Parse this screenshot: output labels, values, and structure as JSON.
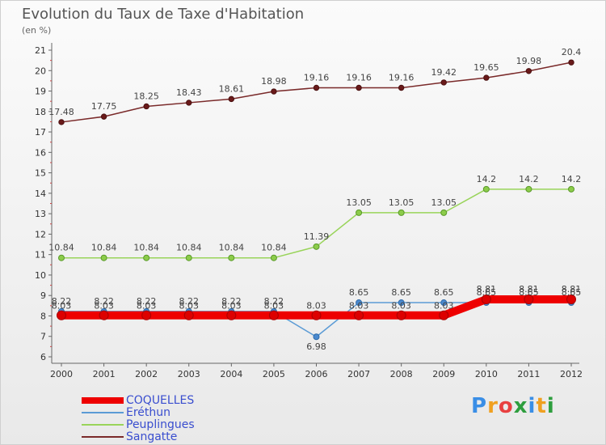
{
  "title": "Evolution du Taux de Taxe d'Habitation",
  "unit": "(en %)",
  "brand": {
    "letters": [
      "P",
      "r",
      "o",
      "x",
      "i",
      "t",
      "i"
    ],
    "colors": [
      "#3a8ee6",
      "#f0a020",
      "#e84040",
      "#2e9e3e",
      "#3a8ee6",
      "#f0a020",
      "#2e9e3e"
    ]
  },
  "chart_data": {
    "type": "line",
    "categories": [
      "2000",
      "2001",
      "2002",
      "2003",
      "2004",
      "2005",
      "2006",
      "2007",
      "2008",
      "2009",
      "2010",
      "2011",
      "2012"
    ],
    "ylim": [
      6,
      21
    ],
    "yticks": [
      "6",
      "7",
      "8",
      "9",
      "10",
      "11",
      "12",
      "13",
      "14",
      "15",
      "16",
      "17",
      "18",
      "19",
      "20",
      "21"
    ],
    "grid": false,
    "legend_position": "bottom-left",
    "series": [
      {
        "name": "COQUELLES",
        "color": "#ee0000",
        "values": [
          8.03,
          8.03,
          8.03,
          8.03,
          8.03,
          8.03,
          8.03,
          8.03,
          8.03,
          8.03,
          8.81,
          8.81,
          8.81
        ],
        "labels": [
          "8.03",
          "8.03",
          "8.03",
          "8.03",
          "8.03",
          "8.03",
          "8.03",
          "8.03",
          "8.03",
          "8.03",
          "8.81",
          "8.81",
          "8.81"
        ]
      },
      {
        "name": "Eréthun",
        "color": "#5b9bd5",
        "values": [
          8.22,
          8.22,
          8.22,
          8.22,
          8.22,
          8.22,
          6.98,
          8.65,
          8.65,
          8.65,
          8.65,
          8.65,
          8.65
        ],
        "labels": [
          "8.22",
          "8.22",
          "8.22",
          "8.22",
          "8.22",
          "8.22",
          "6.98",
          "8.65",
          "8.65",
          "8.65",
          "8.65",
          "8.65",
          "8.65"
        ]
      },
      {
        "name": "Peuplingues",
        "color": "#99d45a",
        "values": [
          10.84,
          10.84,
          10.84,
          10.84,
          10.84,
          10.84,
          11.39,
          13.05,
          13.05,
          13.05,
          14.2,
          14.2,
          14.2
        ],
        "labels": [
          "10.84",
          "10.84",
          "10.84",
          "10.84",
          "10.84",
          "10.84",
          "11.39",
          "13.05",
          "13.05",
          "13.05",
          "14.2",
          "14.2",
          "14.2"
        ]
      },
      {
        "name": "Sangatte",
        "color": "#7a2a2a",
        "values": [
          17.48,
          17.75,
          18.25,
          18.43,
          18.61,
          18.98,
          19.16,
          19.16,
          19.16,
          19.42,
          19.65,
          19.98,
          20.4
        ],
        "labels": [
          "17.48",
          "17.75",
          "18.25",
          "18.43",
          "18.61",
          "18.98",
          "19.16",
          "19.16",
          "19.16",
          "19.42",
          "19.65",
          "19.98",
          "20.4"
        ]
      }
    ]
  }
}
